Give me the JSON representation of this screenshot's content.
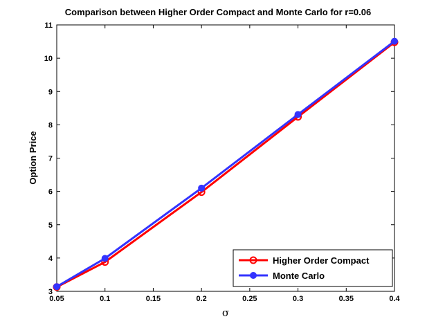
{
  "chart_data": {
    "type": "line",
    "title": "Comparison between Higher Order Compact and Monte Carlo for r=0.06",
    "xlabel": "σ",
    "ylabel": "Option Price",
    "xlim": [
      0.05,
      0.4
    ],
    "ylim": [
      3,
      11
    ],
    "xticks": [
      "0.05",
      "0.1",
      "0.15",
      "0.2",
      "0.25",
      "0.3",
      "0.35",
      "0.4"
    ],
    "yticks": [
      "3",
      "4",
      "5",
      "6",
      "7",
      "8",
      "9",
      "10",
      "11"
    ],
    "grid": false,
    "legend_position": "bottom-right",
    "x": [
      0.05,
      0.1,
      0.2,
      0.3,
      0.4
    ],
    "series": [
      {
        "name": "Higher Order Compact",
        "values": [
          3.13,
          3.88,
          5.98,
          8.24,
          10.48
        ],
        "color": "#ff0000",
        "marker": "open-circle"
      },
      {
        "name": "Monte Carlo",
        "values": [
          3.14,
          3.99,
          6.1,
          8.31,
          10.51
        ],
        "color": "#3333ff",
        "marker": "filled-circle"
      }
    ]
  }
}
